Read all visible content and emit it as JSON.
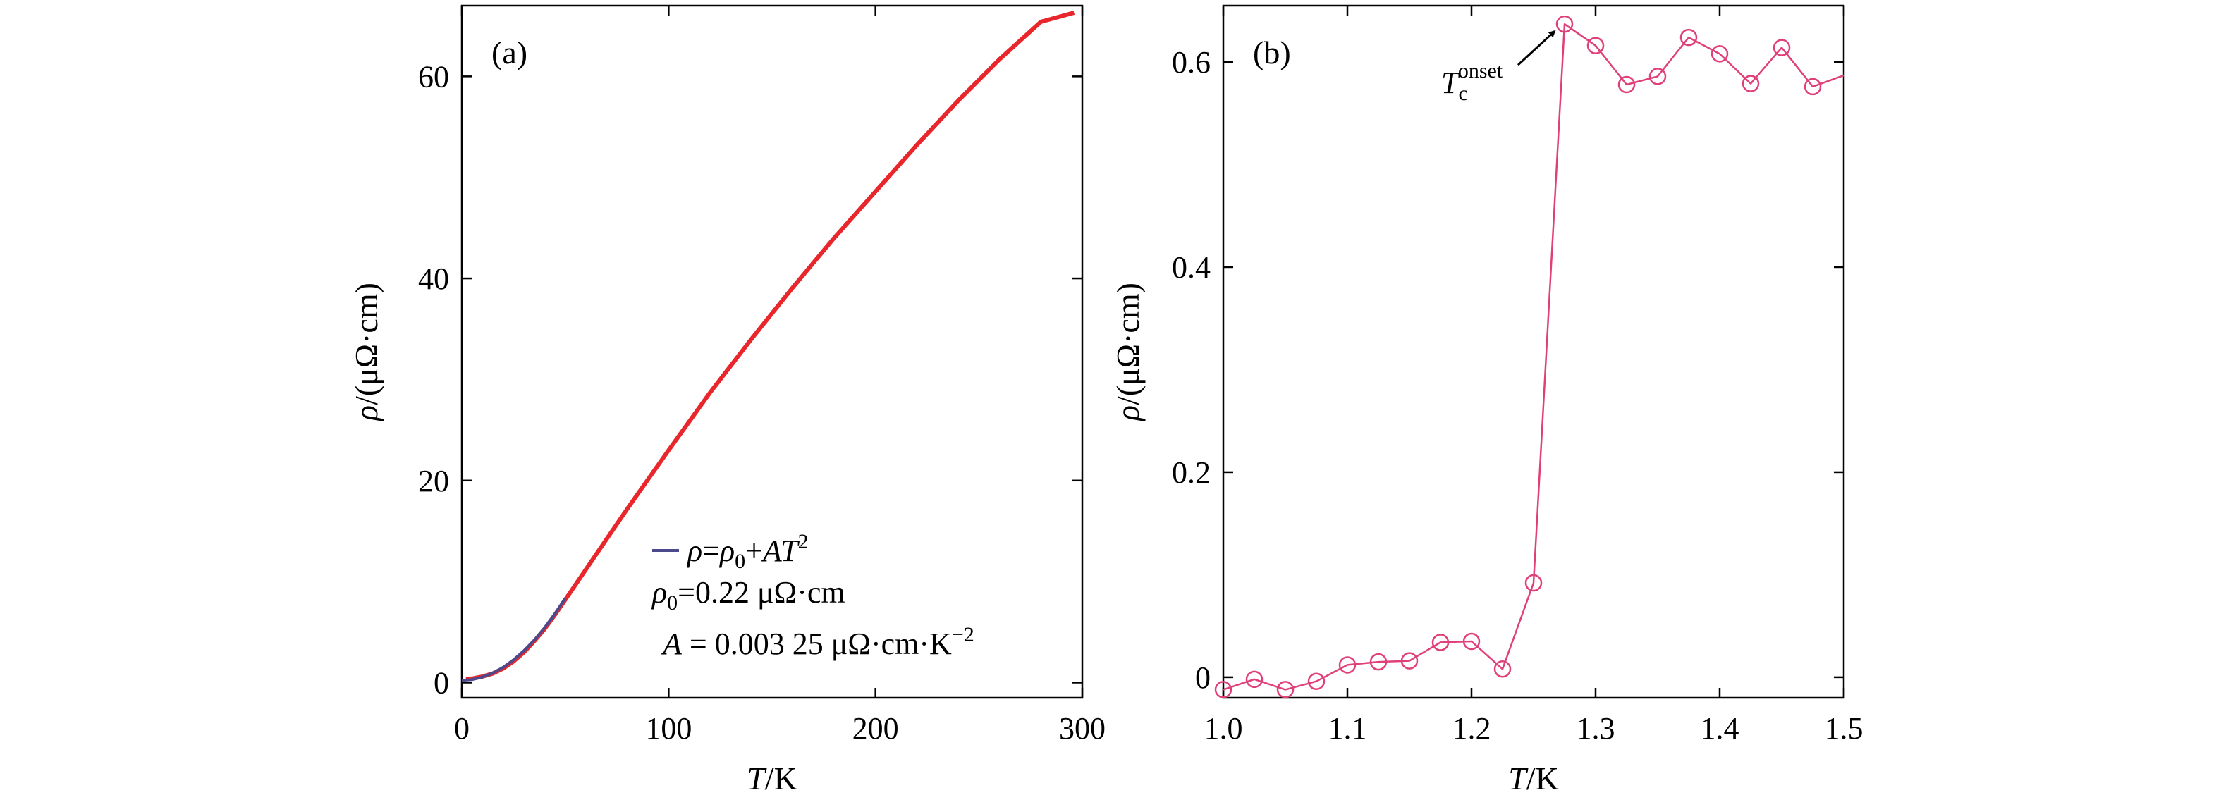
{
  "chart_data": [
    {
      "type": "line",
      "panel_label": "(a)",
      "xlabel_italic": "T",
      "xlabel_rest": "/K",
      "ylabel_italic": "ρ",
      "ylabel_rest": "/(μΩ·cm)",
      "xlim": [
        0,
        300
      ],
      "ylim": [
        -1.5,
        67
      ],
      "xticks": [
        0,
        100,
        200,
        300
      ],
      "yticks": [
        0,
        20,
        40,
        60
      ],
      "series": [
        {
          "role": "data",
          "color": "#e8262b",
          "x": [
            2,
            5,
            10,
            15,
            20,
            25,
            30,
            35,
            40,
            45,
            50,
            60,
            70,
            80,
            90,
            100,
            120,
            140,
            160,
            180,
            200,
            220,
            240,
            260,
            280,
            296
          ],
          "y": [
            0.35,
            0.4,
            0.6,
            0.9,
            1.4,
            2.1,
            3.0,
            4.1,
            5.3,
            6.7,
            8.2,
            11.2,
            14.2,
            17.2,
            20.1,
            23.0,
            28.7,
            34.0,
            39.1,
            44.0,
            48.6,
            53.2,
            57.6,
            61.7,
            65.4,
            66.3
          ]
        },
        {
          "role": "fit",
          "name": "ρ=ρ0+AT²",
          "color": "#4c4a8c",
          "x": [
            0,
            5,
            10,
            15,
            20,
            25,
            30,
            35,
            40,
            45,
            50
          ],
          "y": [
            0.22,
            0.3,
            0.55,
            0.95,
            1.52,
            2.25,
            3.15,
            4.2,
            5.42,
            6.8,
            8.35
          ]
        }
      ],
      "legend": {
        "line_label_parts": [
          "ρ",
          "=",
          "ρ",
          "0",
          "+",
          "AT",
          "2"
        ],
        "rho0_line": "ρ0=0.22 μΩ·cm",
        "rho0_parts": [
          "ρ",
          "0",
          "=0.22 μΩ·cm"
        ],
        "A_line": "A = 0.003 25 μΩ·cm·K−2",
        "A_parts": [
          "A",
          " = 0.003 25 μΩ·cm·K",
          "−2"
        ],
        "position": "bottom-right"
      }
    },
    {
      "type": "line",
      "panel_label": "(b)",
      "xlabel_italic": "T",
      "xlabel_rest": "/K",
      "ylabel_italic": "ρ",
      "ylabel_rest": "/(μΩ·cm)",
      "xlim": [
        1.0,
        1.5
      ],
      "ylim": [
        -0.02,
        0.655
      ],
      "xticks": [
        "1.0",
        "1.1",
        "1.2",
        "1.3",
        "1.4",
        "1.5"
      ],
      "xtick_values": [
        1.0,
        1.1,
        1.2,
        1.3,
        1.4,
        1.5
      ],
      "yticks": [
        "0",
        "0.2",
        "0.4",
        "0.6"
      ],
      "ytick_values": [
        0,
        0.2,
        0.4,
        0.6
      ],
      "series": [
        {
          "role": "data",
          "color": "#e0407a",
          "marker": "open-circle",
          "x": [
            1.0,
            1.025,
            1.05,
            1.075,
            1.1,
            1.125,
            1.15,
            1.175,
            1.2,
            1.225,
            1.25,
            1.275,
            1.3,
            1.325,
            1.35,
            1.375,
            1.4,
            1.425,
            1.45,
            1.475
          ],
          "y": [
            -0.012,
            -0.002,
            -0.012,
            -0.004,
            0.012,
            0.015,
            0.016,
            0.034,
            0.035,
            0.008,
            0.092,
            0.637,
            0.616,
            0.578,
            0.586,
            0.624,
            0.608,
            0.579,
            0.614,
            0.576
          ],
          "line_end": {
            "x": 1.5,
            "y": 0.587
          }
        }
      ],
      "annotation": {
        "text_italic": "T",
        "sub": "c",
        "sup": "onset",
        "full": "Tc onset",
        "points_to": {
          "x": 1.275,
          "y": 0.637
        }
      }
    }
  ]
}
